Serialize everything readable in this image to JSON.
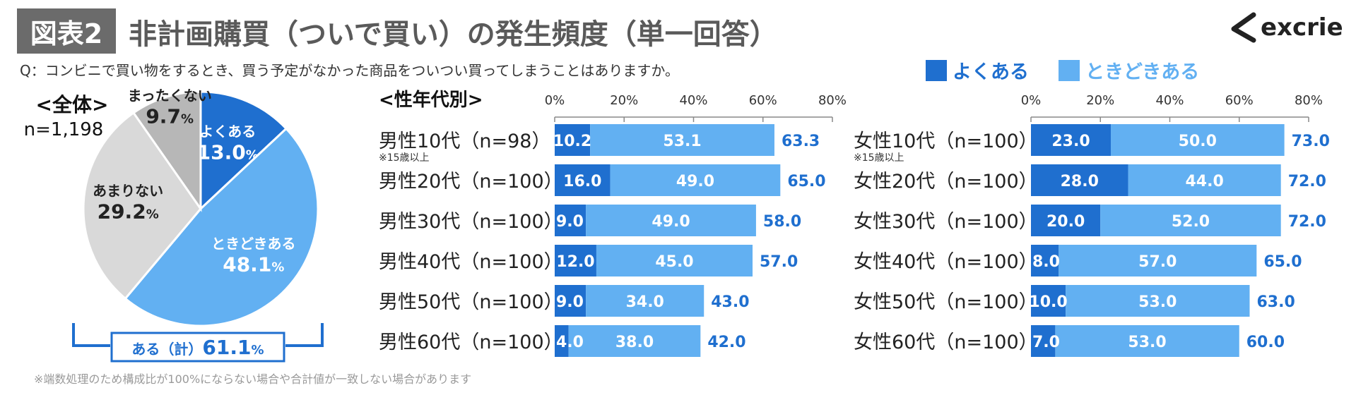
{
  "header": {
    "badge": "図表2",
    "title": "非計画購買（ついで買い）の発生頻度（単一回答）",
    "question": "Q：コンビニで買い物をするとき、買う予定がなかった商品をついつい買ってしまうことはありますか。",
    "logo_text": "excrie"
  },
  "legend": {
    "often": "よくある",
    "sometimes": "ときどきある"
  },
  "colors": {
    "often": "#1f6fcf",
    "sometimes": "#62b0f2",
    "rarely": "#d9d9d9",
    "never": "#b7b7b7",
    "value_label": "#1f6fcf",
    "title_badge": "#6b6b6b"
  },
  "note": "※端数処理のため構成比が100%にならない場合や合計値が一致しない場合があります",
  "chart_data": [
    {
      "type": "pie",
      "title": "<全体>",
      "subtitle": "n=1,198",
      "slices": [
        {
          "name": "よくある",
          "value": 13.0,
          "label": "13.0"
        },
        {
          "name": "ときどきある",
          "value": 48.1,
          "label": "48.1"
        },
        {
          "name": "あまりない",
          "value": 29.2,
          "label": "29.2"
        },
        {
          "name": "まったくない",
          "value": 9.7,
          "label": "9.7"
        }
      ],
      "unit": "%",
      "total_label": "ある（計）",
      "total_value": "61.1",
      "total_unit": "%"
    },
    {
      "type": "bar",
      "title": "<性年代別>",
      "orientation": "horizontal",
      "stacked": true,
      "xlim": [
        0,
        80
      ],
      "ticks": [
        "0%",
        "20%",
        "40%",
        "60%",
        "80%"
      ],
      "sub_note": "※15歳以上",
      "categories": [
        "男性10代（n=98）",
        "男性20代（n=100）",
        "男性30代（n=100）",
        "男性40代（n=100）",
        "男性50代（n=100）",
        "男性60代（n=100）"
      ],
      "series": [
        {
          "name": "よくある",
          "values": [
            10.2,
            16.0,
            9.0,
            12.0,
            9.0,
            4.0
          ],
          "labels": [
            "10.2",
            "16.0",
            "9.0",
            "12.0",
            "9.0",
            "4.0"
          ]
        },
        {
          "name": "ときどきある",
          "values": [
            53.1,
            49.0,
            49.0,
            45.0,
            34.0,
            38.0
          ],
          "labels": [
            "53.1",
            "49.0",
            "49.0",
            "45.0",
            "34.0",
            "38.0"
          ]
        }
      ],
      "totals": [
        "63.3",
        "65.0",
        "58.0",
        "57.0",
        "43.0",
        "42.0"
      ]
    },
    {
      "type": "bar",
      "orientation": "horizontal",
      "stacked": true,
      "xlim": [
        0,
        80
      ],
      "ticks": [
        "0%",
        "20%",
        "40%",
        "60%",
        "80%"
      ],
      "sub_note": "※15歳以上",
      "categories": [
        "女性10代（n=100）",
        "女性20代（n=100）",
        "女性30代（n=100）",
        "女性40代（n=100）",
        "女性50代（n=100）",
        "女性60代（n=100）"
      ],
      "series": [
        {
          "name": "よくある",
          "values": [
            23.0,
            28.0,
            20.0,
            8.0,
            10.0,
            7.0
          ],
          "labels": [
            "23.0",
            "28.0",
            "20.0",
            "8.0",
            "10.0",
            "7.0"
          ]
        },
        {
          "name": "ときどきある",
          "values": [
            50.0,
            44.0,
            52.0,
            57.0,
            53.0,
            53.0
          ],
          "labels": [
            "50.0",
            "44.0",
            "52.0",
            "57.0",
            "53.0",
            "53.0"
          ]
        }
      ],
      "totals": [
        "73.0",
        "72.0",
        "72.0",
        "65.0",
        "63.0",
        "60.0"
      ]
    }
  ]
}
